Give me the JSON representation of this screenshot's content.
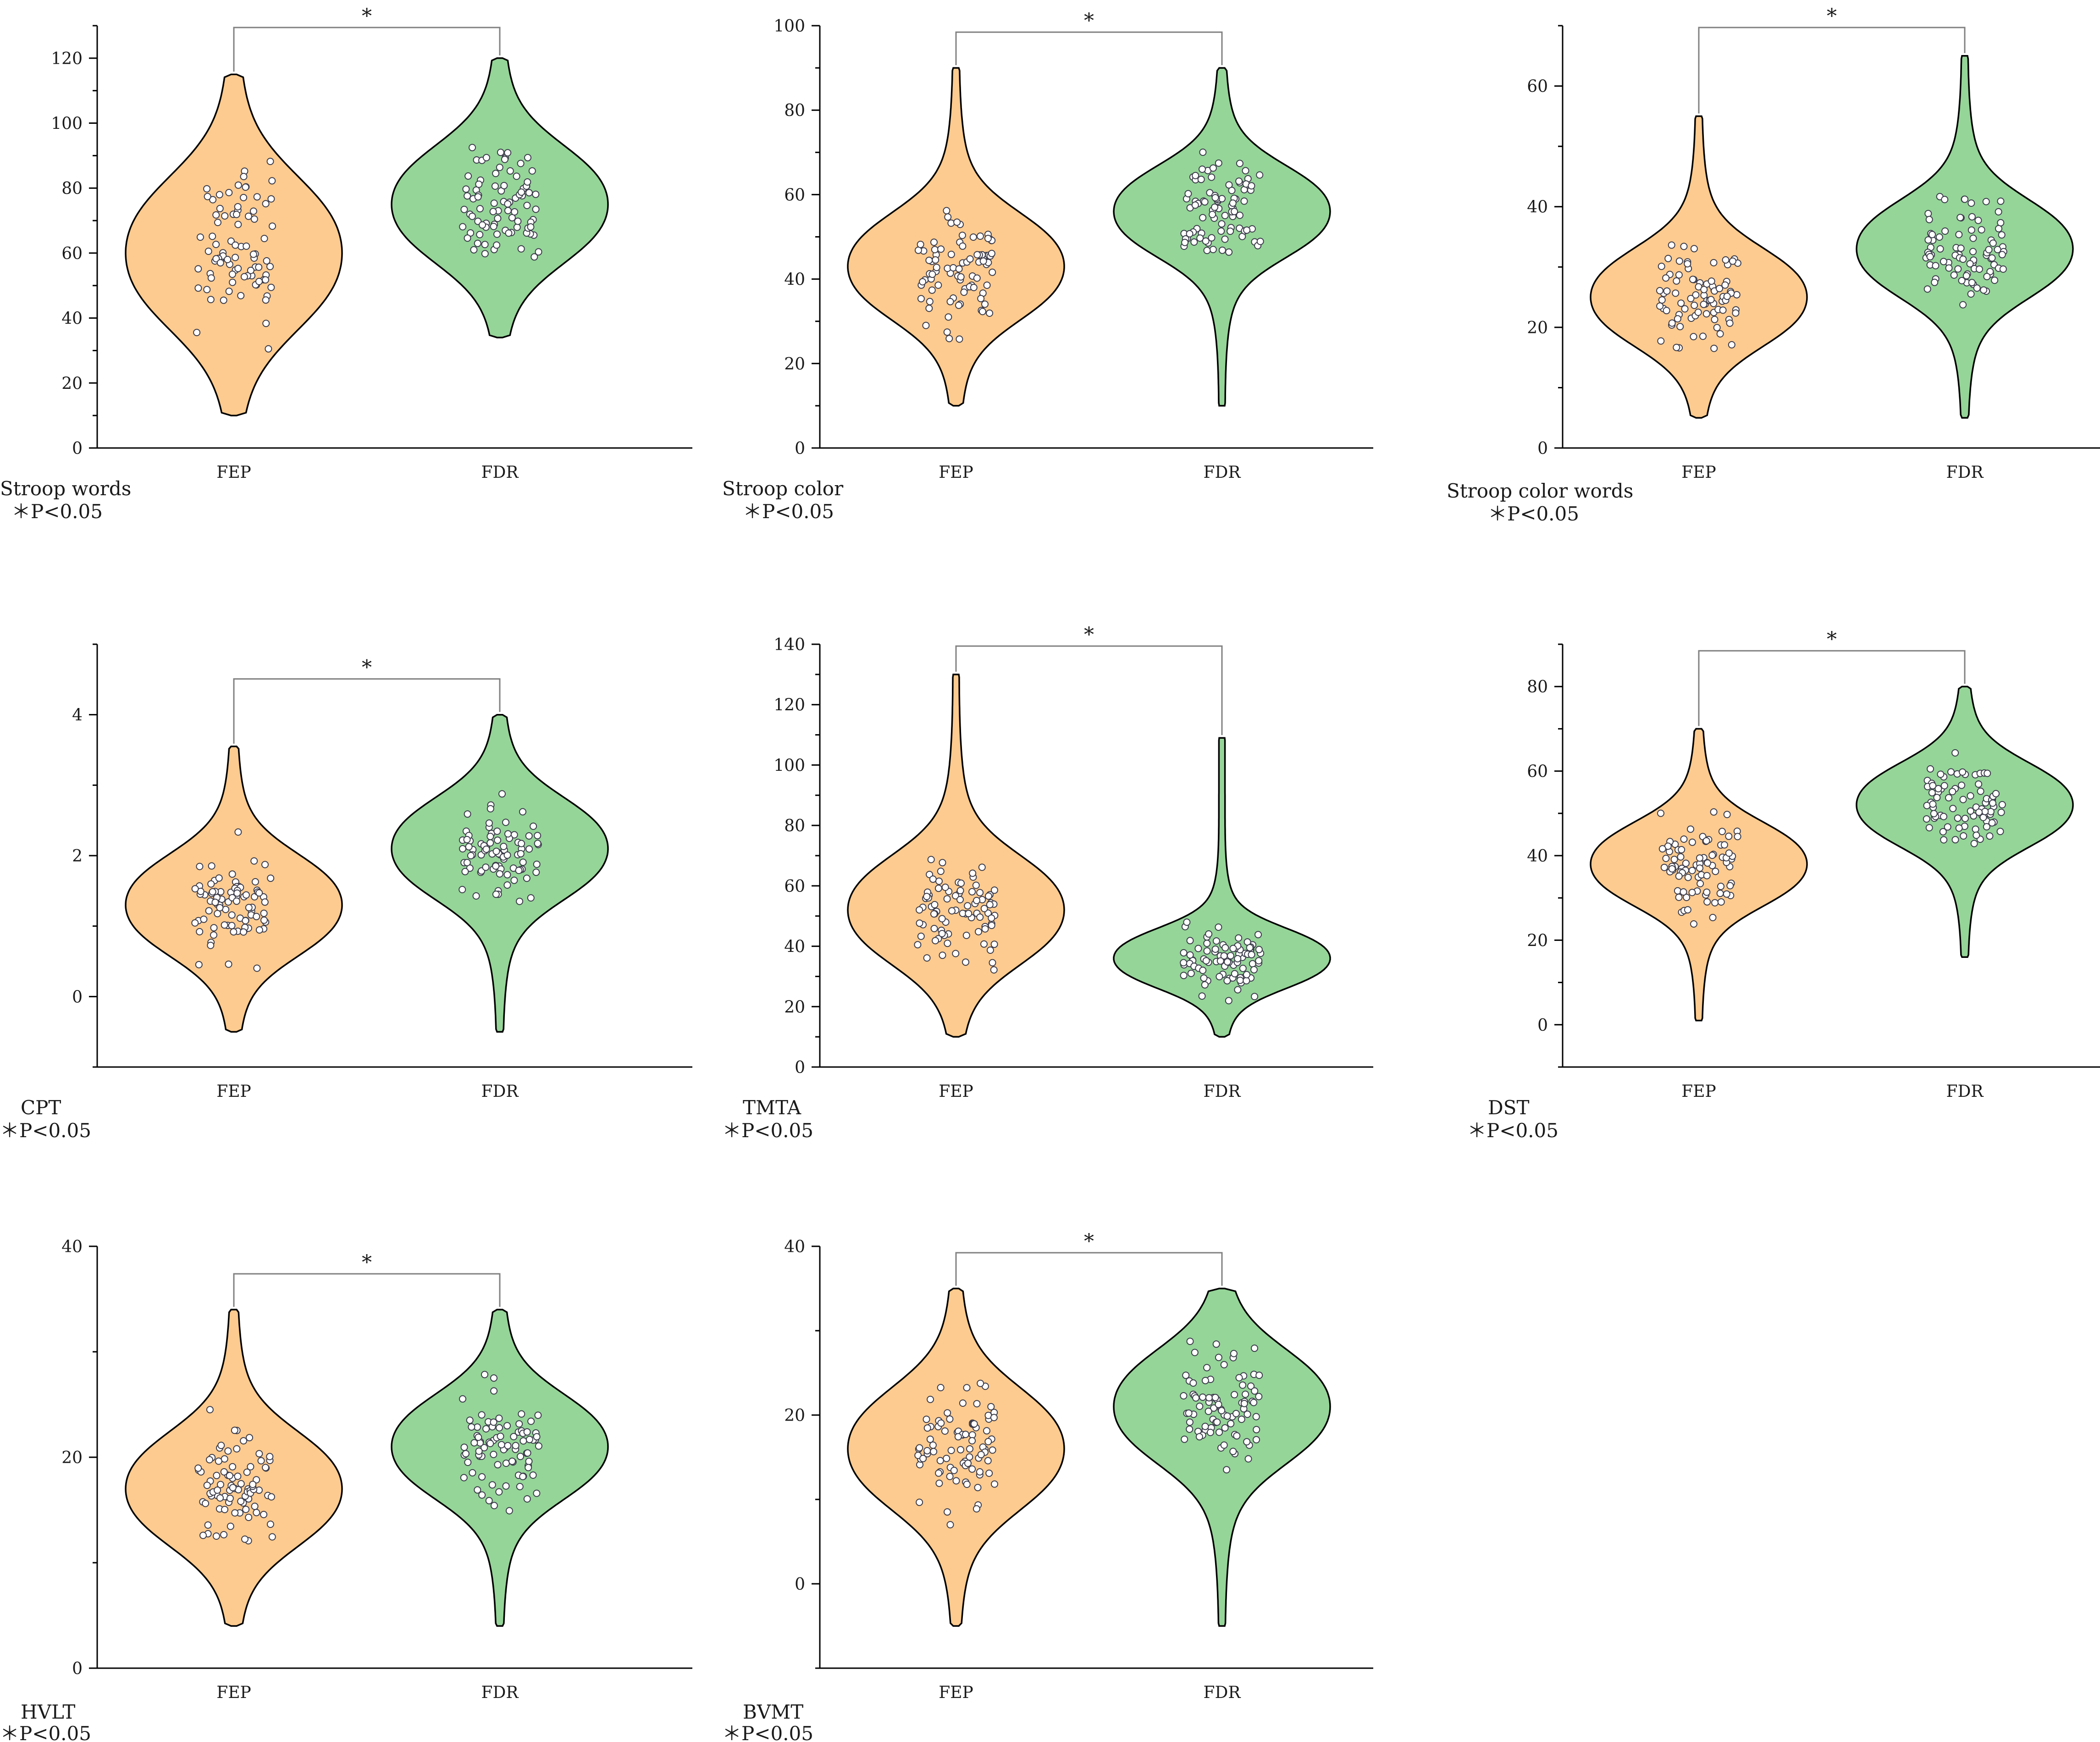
{
  "colors": {
    "FEP": "#fdcb8f",
    "FDR": "#95d598",
    "outline": "#000000",
    "bracket": "#808080",
    "point_fill": "#ffffff",
    "point_stroke": "#3b3b4a"
  },
  "chart_data": [
    {
      "type": "violin",
      "ylim": [
        0,
        130
      ],
      "yticks": [
        0,
        20,
        40,
        60,
        80,
        100,
        120
      ],
      "minor_step": 10,
      "categories": [
        "FEP",
        "FDR"
      ],
      "series": [
        {
          "name": "FEP",
          "min": 10,
          "max": 115,
          "median": 60,
          "spread": 26
        },
        {
          "name": "FDR",
          "min": 34,
          "max": 120,
          "median": 75,
          "spread": 20
        }
      ],
      "points_per_group": 85,
      "bracket": "*",
      "caption": "Stroop words",
      "note": "＊P<0.05"
    },
    {
      "type": "violin",
      "ylim": [
        0,
        100
      ],
      "yticks": [
        0,
        20,
        40,
        60,
        80,
        100
      ],
      "minor_step": 10,
      "categories": [
        "FEP",
        "FDR"
      ],
      "series": [
        {
          "name": "FEP",
          "min": 10,
          "max": 90,
          "median": 43,
          "spread": 14
        },
        {
          "name": "FDR",
          "min": 10,
          "max": 90,
          "median": 56,
          "spread": 12
        }
      ],
      "points_per_group": 85,
      "bracket": "*",
      "caption": "Stroop color",
      "note": "＊P<0.05"
    },
    {
      "type": "violin",
      "ylim": [
        0,
        70
      ],
      "yticks": [
        0,
        20,
        40,
        60
      ],
      "minor_step": 10,
      "categories": [
        "FEP",
        "FDR"
      ],
      "series": [
        {
          "name": "FEP",
          "min": 5,
          "max": 55,
          "median": 25,
          "spread": 9
        },
        {
          "name": "FDR",
          "min": 5,
          "max": 65,
          "median": 33,
          "spread": 9
        }
      ],
      "points_per_group": 85,
      "bracket": "*",
      "caption": "Stroop color words",
      "note": "＊P<0.05"
    },
    {
      "type": "violin",
      "ylim": [
        -1,
        5
      ],
      "yticks": [
        0,
        2,
        4
      ],
      "minor_step": 1,
      "categories": [
        "FEP",
        "FDR"
      ],
      "series": [
        {
          "name": "FEP",
          "min": -0.5,
          "max": 3.55,
          "median": 1.3,
          "spread": 0.8
        },
        {
          "name": "FDR",
          "min": -0.5,
          "max": 4.0,
          "median": 2.1,
          "spread": 0.8
        }
      ],
      "points_per_group": 85,
      "bracket": "*",
      "caption": "CPT",
      "note": "＊P<0.05"
    },
    {
      "type": "violin",
      "ylim": [
        0,
        140
      ],
      "yticks": [
        0,
        20,
        40,
        60,
        80,
        100,
        120,
        140
      ],
      "minor_step": 10,
      "categories": [
        "FEP",
        "FDR"
      ],
      "series": [
        {
          "name": "FEP",
          "min": 10,
          "max": 130,
          "median": 52,
          "spread": 20
        },
        {
          "name": "FDR",
          "min": 10,
          "max": 109,
          "median": 36,
          "spread": 11
        }
      ],
      "points_per_group": 85,
      "bracket": "*",
      "caption": "TMTA",
      "note": "＊P<0.05"
    },
    {
      "type": "violin",
      "ylim": [
        -10,
        90
      ],
      "yticks": [
        0,
        20,
        40,
        60,
        80
      ],
      "minor_step": 10,
      "categories": [
        "FEP",
        "FDR"
      ],
      "series": [
        {
          "name": "FEP",
          "min": 1,
          "max": 70,
          "median": 38,
          "spread": 11
        },
        {
          "name": "FDR",
          "min": 16,
          "max": 80,
          "median": 52,
          "spread": 11
        }
      ],
      "points_per_group": 85,
      "bracket": "*",
      "caption": "DST",
      "note": "＊P<0.05"
    },
    {
      "type": "violin",
      "ylim": [
        0,
        40
      ],
      "yticks": [
        0,
        20,
        40
      ],
      "minor_step": 10,
      "categories": [
        "FEP",
        "FDR"
      ],
      "series": [
        {
          "name": "FEP",
          "min": 4,
          "max": 34,
          "median": 17,
          "spread": 6
        },
        {
          "name": "FDR",
          "min": 4,
          "max": 34,
          "median": 21,
          "spread": 5.5
        }
      ],
      "points_per_group": 85,
      "bracket": "*",
      "caption": "HVLT",
      "note": "＊P<0.05"
    },
    {
      "type": "violin",
      "ylim": [
        -10,
        40
      ],
      "yticks": [
        0,
        20,
        40
      ],
      "minor_step": 10,
      "categories": [
        "FEP",
        "FDR"
      ],
      "series": [
        {
          "name": "FEP",
          "min": -5,
          "max": 35,
          "median": 16,
          "spread": 8
        },
        {
          "name": "FDR",
          "min": -5,
          "max": 35,
          "median": 21,
          "spread": 7.5
        }
      ],
      "points_per_group": 85,
      "bracket": "*",
      "caption": "BVMT",
      "note": "＊P<0.05"
    }
  ]
}
